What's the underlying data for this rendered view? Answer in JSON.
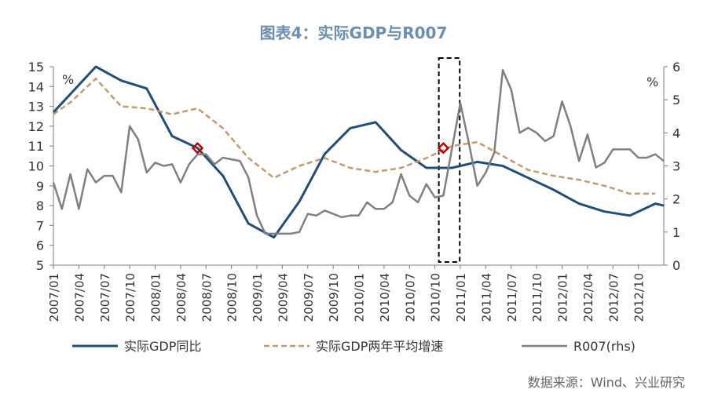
{
  "title": "图表4：实际GDP与R007",
  "source": "数据来源：Wind、兴业研究",
  "colors": {
    "title": "#6a8fb0",
    "gdp": "#1f4e79",
    "gdp_avg": "#c49a6c",
    "r007": "#808080",
    "axis": "#7f7f7f",
    "marker": "#c00000"
  },
  "chart_data": {
    "type": "line",
    "y_left": {
      "unit": "%",
      "range": [
        5,
        15
      ],
      "ticks": [
        "5",
        "6",
        "7",
        "8",
        "9",
        "10",
        "11",
        "12",
        "13",
        "14",
        "15"
      ]
    },
    "y_right": {
      "unit": "%",
      "range": [
        0,
        6
      ],
      "ticks": [
        "0",
        "1",
        "2",
        "3",
        "4",
        "5",
        "6"
      ]
    },
    "x_ticks": [
      "2007/01",
      "2007/04",
      "2007/07",
      "2007/10",
      "2008/01",
      "2008/04",
      "2008/07",
      "2008/10",
      "2009/01",
      "2009/04",
      "2009/07",
      "2009/10",
      "2010/01",
      "2010/04",
      "2010/07",
      "2010/10",
      "2011/01",
      "2011/04",
      "2011/07",
      "2011/10",
      "2012/01",
      "2012/04",
      "2012/07",
      "2012/10"
    ],
    "x_start": "2007/01",
    "x_end": "2013/01",
    "grid": false,
    "legend_position": "bottom",
    "series": [
      {
        "name": "实际GDP同比",
        "axis": "left",
        "style": "solid",
        "points": [
          [
            "2007/01",
            12.7
          ],
          [
            "2007/06",
            15.0
          ],
          [
            "2007/09",
            14.3
          ],
          [
            "2007/12",
            13.9
          ],
          [
            "2008/03",
            11.5
          ],
          [
            "2008/06",
            10.9
          ],
          [
            "2008/09",
            9.5
          ],
          [
            "2008/12",
            7.1
          ],
          [
            "2009/03",
            6.4
          ],
          [
            "2009/06",
            8.2
          ],
          [
            "2009/09",
            10.6
          ],
          [
            "2009/12",
            11.9
          ],
          [
            "2010/03",
            12.2
          ],
          [
            "2010/06",
            10.8
          ],
          [
            "2010/09",
            9.9
          ],
          [
            "2010/12",
            9.9
          ],
          [
            "2011/03",
            10.2
          ],
          [
            "2011/06",
            10.0
          ],
          [
            "2011/09",
            9.4
          ],
          [
            "2011/12",
            8.8
          ],
          [
            "2012/03",
            8.1
          ],
          [
            "2012/06",
            7.7
          ],
          [
            "2012/09",
            7.5
          ],
          [
            "2012/12",
            8.1
          ],
          [
            "2013/01",
            8.0
          ]
        ]
      },
      {
        "name": "实际GDP两年平均增速",
        "axis": "left",
        "style": "dashed",
        "points": [
          [
            "2007/01",
            12.6
          ],
          [
            "2007/03",
            13.2
          ],
          [
            "2007/06",
            14.4
          ],
          [
            "2007/09",
            13.0
          ],
          [
            "2007/12",
            12.9
          ],
          [
            "2008/03",
            12.6
          ],
          [
            "2008/06",
            12.9
          ],
          [
            "2008/09",
            11.9
          ],
          [
            "2008/12",
            10.4
          ],
          [
            "2009/03",
            9.4
          ],
          [
            "2009/06",
            10.0
          ],
          [
            "2009/09",
            10.4
          ],
          [
            "2009/12",
            9.9
          ],
          [
            "2010/03",
            9.7
          ],
          [
            "2010/06",
            9.9
          ],
          [
            "2010/09",
            10.4
          ],
          [
            "2010/12",
            11.0
          ],
          [
            "2011/03",
            11.2
          ],
          [
            "2011/06",
            10.5
          ],
          [
            "2011/09",
            9.8
          ],
          [
            "2011/12",
            9.5
          ],
          [
            "2012/03",
            9.3
          ],
          [
            "2012/06",
            9.0
          ],
          [
            "2012/09",
            8.6
          ],
          [
            "2012/12",
            8.6
          ]
        ]
      },
      {
        "name": "R007(rhs)",
        "axis": "right",
        "style": "solid",
        "points": [
          [
            "2007/01",
            2.5
          ],
          [
            "2007/02",
            1.7
          ],
          [
            "2007/03",
            2.75
          ],
          [
            "2007/04",
            1.7
          ],
          [
            "2007/05",
            2.9
          ],
          [
            "2007/06",
            2.5
          ],
          [
            "2007/07",
            2.7
          ],
          [
            "2007/08",
            2.7
          ],
          [
            "2007/09",
            2.2
          ],
          [
            "2007/10",
            4.2
          ],
          [
            "2007/11",
            3.8
          ],
          [
            "2007/12",
            2.8
          ],
          [
            "2008/01",
            3.1
          ],
          [
            "2008/02",
            3.0
          ],
          [
            "2008/03",
            3.05
          ],
          [
            "2008/04",
            2.5
          ],
          [
            "2008/05",
            3.05
          ],
          [
            "2008/06",
            3.35
          ],
          [
            "2008/07",
            3.35
          ],
          [
            "2008/08",
            3.05
          ],
          [
            "2008/09",
            3.25
          ],
          [
            "2008/10",
            3.2
          ],
          [
            "2008/11",
            3.15
          ],
          [
            "2008/12",
            2.65
          ],
          [
            "2009/01",
            1.5
          ],
          [
            "2009/02",
            0.95
          ],
          [
            "2009/03",
            0.95
          ],
          [
            "2009/04",
            0.95
          ],
          [
            "2009/05",
            0.95
          ],
          [
            "2009/06",
            1.0
          ],
          [
            "2009/07",
            1.55
          ],
          [
            "2009/08",
            1.5
          ],
          [
            "2009/09",
            1.65
          ],
          [
            "2009/10",
            1.55
          ],
          [
            "2009/11",
            1.45
          ],
          [
            "2009/12",
            1.5
          ],
          [
            "2010/01",
            1.5
          ],
          [
            "2010/02",
            1.9
          ],
          [
            "2010/03",
            1.7
          ],
          [
            "2010/04",
            1.7
          ],
          [
            "2010/05",
            1.9
          ],
          [
            "2010/06",
            2.75
          ],
          [
            "2010/07",
            2.1
          ],
          [
            "2010/08",
            1.9
          ],
          [
            "2010/09",
            2.45
          ],
          [
            "2010/10",
            2.05
          ],
          [
            "2010/11",
            2.1
          ],
          [
            "2010/12",
            3.5
          ],
          [
            "2011/01",
            4.9
          ],
          [
            "2011/02",
            3.7
          ],
          [
            "2011/03",
            2.4
          ],
          [
            "2011/04",
            2.8
          ],
          [
            "2011/05",
            3.4
          ],
          [
            "2011/06",
            5.9
          ],
          [
            "2011/07",
            5.3
          ],
          [
            "2011/08",
            4.0
          ],
          [
            "2011/09",
            4.15
          ],
          [
            "2011/10",
            4.0
          ],
          [
            "2011/11",
            3.75
          ],
          [
            "2011/12",
            3.9
          ],
          [
            "2012/01",
            4.95
          ],
          [
            "2012/02",
            4.2
          ],
          [
            "2012/03",
            3.15
          ],
          [
            "2012/04",
            3.95
          ],
          [
            "2012/05",
            2.95
          ],
          [
            "2012/06",
            3.1
          ],
          [
            "2012/07",
            3.5
          ],
          [
            "2012/08",
            3.5
          ],
          [
            "2012/09",
            3.5
          ],
          [
            "2012/10",
            3.25
          ],
          [
            "2012/11",
            3.25
          ],
          [
            "2012/12",
            3.35
          ],
          [
            "2013/01",
            3.15
          ]
        ]
      }
    ],
    "markers": [
      {
        "at": "2008/06",
        "value": 10.9,
        "axis": "left"
      },
      {
        "at": "2010/11",
        "value": 10.9,
        "axis": "left"
      }
    ],
    "highlight_box": {
      "from": "2010/10",
      "to": "2010/12"
    }
  }
}
